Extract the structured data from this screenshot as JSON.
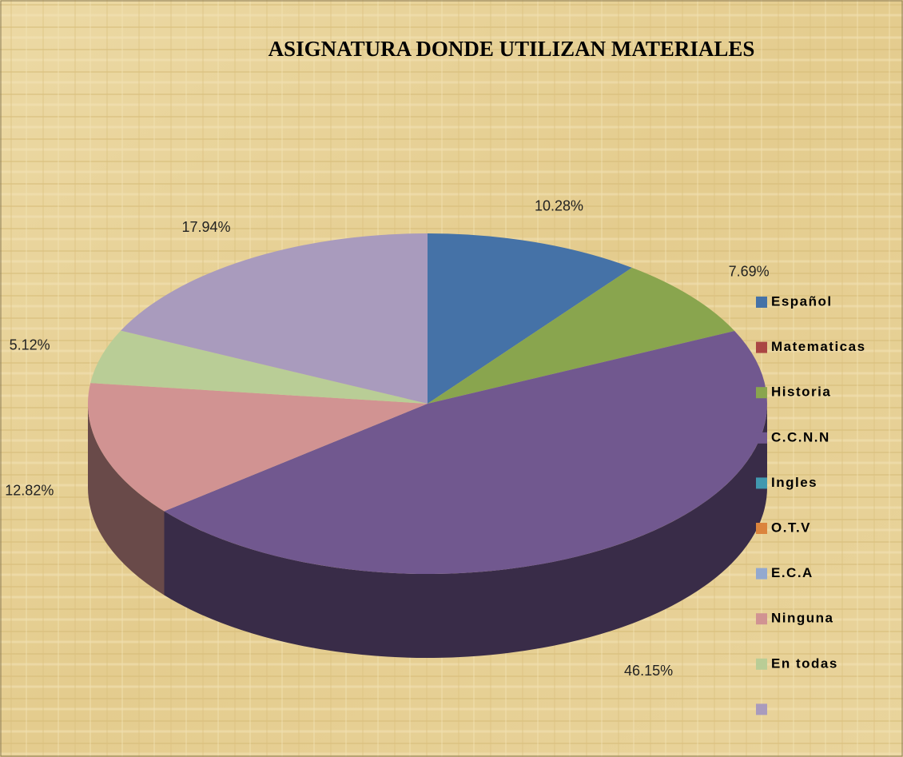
{
  "chart_data": {
    "type": "pie",
    "title": "ASIGNATURA  DONDE UTILIZAN MATERIALES",
    "categories": [
      "Español",
      "Matematicas",
      "Historia",
      "C.C.N.N",
      "Ingles",
      "O.T.V",
      "E.C.A",
      "Ninguna",
      "En todas",
      null
    ],
    "values": [
      10.28,
      0,
      7.69,
      46.15,
      0,
      0,
      0,
      12.82,
      5.12,
      17.94
    ],
    "value_labels": [
      "10.28%",
      null,
      "7.69%",
      "46.15%",
      null,
      null,
      null,
      "12.82%",
      "5.12%",
      "17.94%"
    ],
    "colors": [
      "#4572a7",
      "#aa4643",
      "#89a54e",
      "#71588f",
      "#4198af",
      "#db843d",
      "#93a9cf",
      "#d19392",
      "#b9cd96",
      "#a99bbd"
    ],
    "legend": "right"
  }
}
